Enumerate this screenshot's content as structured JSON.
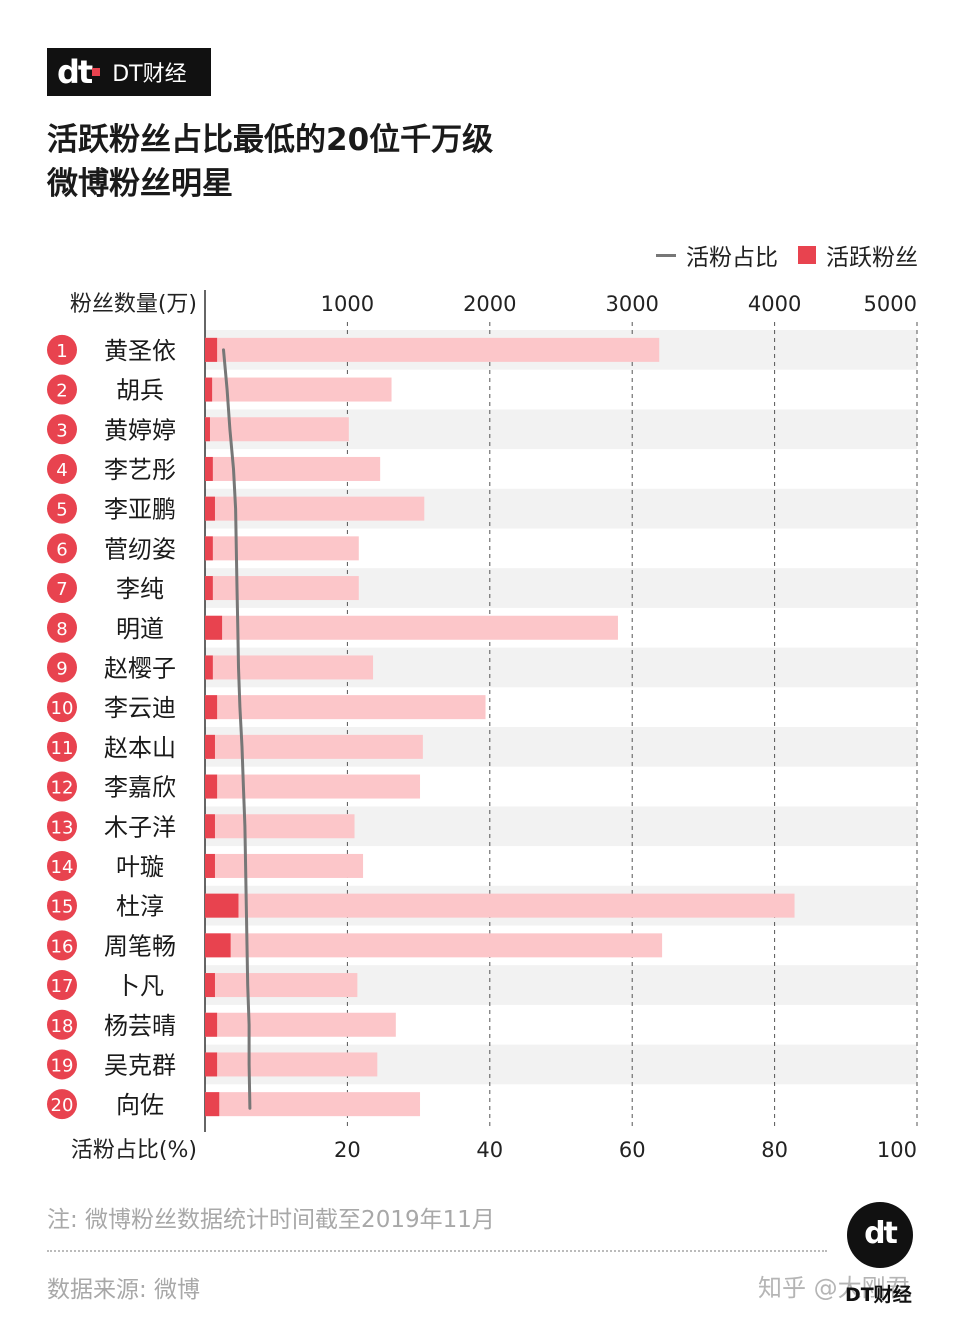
{
  "brand": {
    "logo_mark": "dt",
    "logo_text": "DT财经"
  },
  "title_line1": "活跃粉丝占比最低的20位千万级",
  "title_line2": "微博粉丝明星",
  "legend": {
    "line_label": "活粉占比",
    "bar_label": "活跃粉丝"
  },
  "colors": {
    "accent": "#e8434f",
    "bar_light": "#fcc6c9",
    "line": "#777777",
    "stripe": "#f2f2f2"
  },
  "chart_data": {
    "type": "bar",
    "orientation": "horizontal",
    "top_axis_label": "粉丝数量(万)",
    "top_axis_ticks": [
      "1000",
      "2000",
      "3000",
      "4000",
      "5000"
    ],
    "top_axis_range": [
      0,
      5000
    ],
    "bottom_axis_label": "活粉占比(%)",
    "bottom_axis_ticks": [
      "20",
      "40",
      "60",
      "80",
      "100"
    ],
    "bottom_axis_range": [
      0,
      100
    ],
    "ranks": [
      "1",
      "2",
      "3",
      "4",
      "5",
      "6",
      "7",
      "8",
      "9",
      "10",
      "11",
      "12",
      "13",
      "14",
      "15",
      "16",
      "17",
      "18",
      "19",
      "20"
    ],
    "categories": [
      "黄圣依",
      "胡兵",
      "黄婷婷",
      "李艺彤",
      "李亚鹏",
      "菅纫姿",
      "李纯",
      "明道",
      "赵樱子",
      "李云迪",
      "赵本山",
      "李嘉欣",
      "木子洋",
      "叶璇",
      "杜淳",
      "周笔畅",
      "卜凡",
      "杨芸晴",
      "吴克群",
      "向佐"
    ],
    "series": [
      {
        "name": "",
        "type": "bar",
        "values": [
          3190,
          1310,
          1010,
          1230,
          1540,
          1080,
          1080,
          2900,
          1180,
          1970,
          1530,
          1510,
          1050,
          1110,
          4140,
          3210,
          1070,
          1340,
          1210,
          1510
        ]
      },
      {
        "name": "活跃粉丝",
        "type": "bar",
        "values": [
          85,
          50,
          35,
          55,
          70,
          55,
          55,
          120,
          55,
          85,
          70,
          85,
          70,
          70,
          235,
          180,
          70,
          85,
          85,
          100
        ]
      },
      {
        "name": "活粉占比",
        "type": "line",
        "values": [
          2.6,
          3.1,
          3.5,
          4.0,
          4.3,
          4.4,
          4.5,
          4.6,
          4.7,
          4.9,
          5.2,
          5.4,
          5.6,
          5.7,
          5.8,
          5.9,
          6.0,
          6.2,
          6.2,
          6.3
        ]
      }
    ],
    "grid": true
  },
  "footer": {
    "note": "注: 微博粉丝数据统计时间截至2019年11月",
    "source": "数据来源: 微博",
    "credit": "知乎 @大刚君",
    "corner_logo": "dt",
    "corner_text": "DT财经"
  }
}
